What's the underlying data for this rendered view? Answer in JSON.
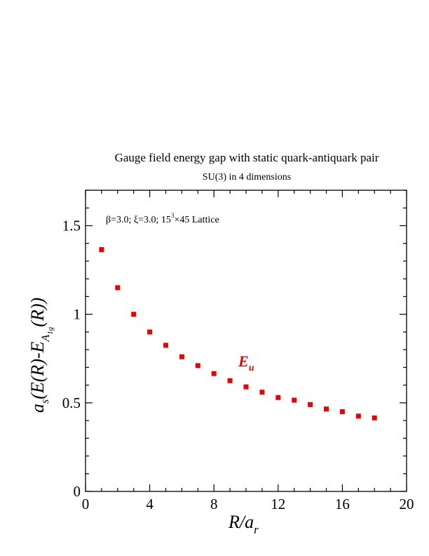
{
  "chart_data": {
    "type": "scatter",
    "title": "Gauge field energy gap with static quark-antiquark pair",
    "subtitle": "SU(3) in 4 dimensions",
    "annotation": {
      "prefix": "β=3.0;  ξ=3.0; 15",
      "superscript": "3",
      "suffix": "×45 Lattice"
    },
    "xlabel": {
      "main": "R/a",
      "subscript": "r"
    },
    "ylabel": {
      "a": "a",
      "a_sub": "s",
      "middle": "(E(R)-E",
      "sub_A": "A",
      "sub_1g": "1g",
      "end": "(R))"
    },
    "xlim": [
      0,
      20
    ],
    "ylim": [
      0,
      1.7
    ],
    "xticks": [
      0,
      4,
      8,
      12,
      16,
      20
    ],
    "xtick_labels": [
      "0",
      "4",
      "8",
      "12",
      "16",
      "20"
    ],
    "yticks": [
      0,
      0.5,
      1,
      1.5
    ],
    "ytick_labels": [
      "0",
      "0.5",
      "1",
      "1.5"
    ],
    "grid": false,
    "series": [
      {
        "name_main": "E",
        "name_sub": "u",
        "color": "#ee0000",
        "x": [
          1,
          2,
          3,
          4,
          5,
          6,
          7,
          8,
          9,
          10,
          11,
          12,
          13,
          14,
          15,
          16,
          17,
          18
        ],
        "y": [
          1.365,
          1.15,
          1.0,
          0.9,
          0.825,
          0.76,
          0.71,
          0.665,
          0.625,
          0.59,
          0.56,
          0.53,
          0.515,
          0.49,
          0.465,
          0.45,
          0.425,
          0.415
        ]
      }
    ]
  }
}
